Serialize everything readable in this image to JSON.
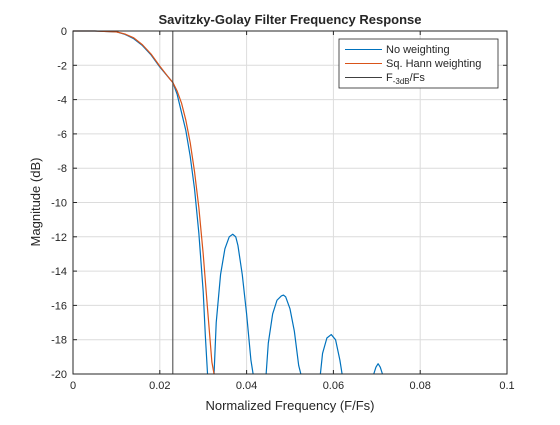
{
  "chart_data": {
    "type": "line",
    "title": "Savitzky-Golay Filter Frequency Response",
    "xlabel": "Normalized Frequency (F/Fs)",
    "ylabel": "Magnitude (dB)",
    "xlim": [
      0,
      0.1
    ],
    "ylim": [
      -20,
      0
    ],
    "xticks": [
      0,
      0.02,
      0.04,
      0.06,
      0.08,
      0.1
    ],
    "xtick_labels": [
      "0",
      "0.02",
      "0.04",
      "0.06",
      "0.08",
      "0.1"
    ],
    "yticks": [
      0,
      -2,
      -4,
      -6,
      -8,
      -10,
      -12,
      -14,
      -16,
      -18,
      -20
    ],
    "ytick_labels": [
      "0",
      "-2",
      "-4",
      "-6",
      "-8",
      "-10",
      "-12",
      "-14",
      "-16",
      "-18",
      "-20"
    ],
    "grid": true,
    "legend_position": "top-right",
    "legend": {
      "entries": [
        "No weighting",
        "Sq. Hann weighting"
      ],
      "f3db_main": "F",
      "f3db_sub": "-3dB",
      "f3db_tail": "/Fs"
    },
    "series": [
      {
        "name": "No weighting",
        "color": "#0072BD",
        "x": [
          0,
          0.005,
          0.01,
          0.012,
          0.014,
          0.016,
          0.018,
          0.02,
          0.022,
          0.023,
          0.024,
          0.026,
          0.027,
          0.028,
          0.029,
          0.03,
          0.0305,
          0.031,
          null,
          0.0325,
          0.033,
          0.034,
          0.035,
          0.036,
          0.0368,
          0.0375,
          0.038,
          0.039,
          0.04,
          0.041,
          0.0415,
          null,
          0.0445,
          0.045,
          0.046,
          0.047,
          0.048,
          0.0485,
          0.049,
          0.05,
          0.051,
          0.052,
          0.0525,
          null,
          0.057,
          0.0575,
          0.0585,
          0.0595,
          0.0605,
          0.0615,
          0.062,
          null,
          0.0693,
          0.0698,
          0.0703,
          0.0708,
          0.0713
        ],
        "y": [
          0,
          0,
          -0.05,
          -0.2,
          -0.45,
          -0.85,
          -1.4,
          -2.1,
          -2.7,
          -3.0,
          -3.7,
          -5.8,
          -7.3,
          -9.2,
          -11.8,
          -15.2,
          -17.8,
          -20,
          null,
          -20,
          -17.0,
          -14.2,
          -12.7,
          -12.0,
          -11.85,
          -12.0,
          -12.5,
          -14.2,
          -16.5,
          -19.2,
          -20,
          null,
          -20,
          -18.2,
          -16.5,
          -15.7,
          -15.45,
          -15.4,
          -15.5,
          -16.2,
          -17.5,
          -19.5,
          -20,
          null,
          -20,
          -18.8,
          -17.9,
          -17.7,
          -18.0,
          -19.2,
          -20,
          null,
          -20,
          -19.6,
          -19.4,
          -19.6,
          -20
        ]
      },
      {
        "name": "Sq. Hann weighting",
        "color": "#D95319",
        "x": [
          0,
          0.005,
          0.01,
          0.012,
          0.014,
          0.016,
          0.018,
          0.02,
          0.022,
          0.023,
          0.024,
          0.025,
          0.026,
          0.027,
          0.028,
          0.029,
          0.03,
          0.031,
          0.032,
          0.0325
        ],
        "y": [
          0,
          0,
          -0.05,
          -0.18,
          -0.4,
          -0.8,
          -1.35,
          -2.05,
          -2.7,
          -3.0,
          -3.5,
          -4.2,
          -5.2,
          -6.5,
          -8.2,
          -10.3,
          -13.0,
          -16.2,
          -19.3,
          -20
        ]
      }
    ],
    "vline": {
      "x": 0.023,
      "color": "#404040"
    }
  }
}
